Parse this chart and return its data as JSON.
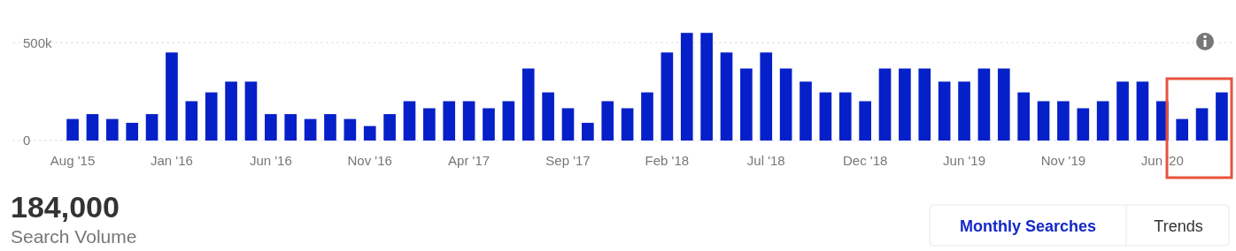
{
  "chart_data": {
    "type": "bar",
    "categories": [
      "Aug '15",
      null,
      null,
      null,
      null,
      "Jan '16",
      null,
      null,
      null,
      null,
      "Jun '16",
      null,
      null,
      null,
      null,
      "Nov '16",
      null,
      null,
      null,
      null,
      "Apr '17",
      null,
      null,
      null,
      null,
      "Sep '17",
      null,
      null,
      null,
      null,
      "Feb '18",
      null,
      null,
      null,
      null,
      "Jul '18",
      null,
      null,
      null,
      null,
      "Dec '18",
      null,
      null,
      null,
      null,
      "Jun '19",
      null,
      null,
      null,
      null,
      "Nov '19",
      null,
      null,
      null,
      null,
      "Jun '20",
      null,
      null,
      null
    ],
    "values": [
      110000,
      135000,
      110000,
      90500,
      135000,
      450000,
      201000,
      246000,
      301000,
      301000,
      135000,
      135000,
      110000,
      135000,
      110000,
      74000,
      135000,
      201000,
      165000,
      201000,
      201000,
      165000,
      201000,
      368000,
      246000,
      165000,
      90500,
      201000,
      165000,
      246000,
      450000,
      550000,
      550000,
      450000,
      368000,
      450000,
      368000,
      301000,
      246000,
      246000,
      201000,
      368000,
      368000,
      368000,
      301000,
      301000,
      368000,
      368000,
      246000,
      201000,
      201000,
      165000,
      201000,
      301000,
      301000,
      201000,
      110000,
      165000,
      246000
    ],
    "color": "#0520c8",
    "ylim": [
      0,
      560000
    ],
    "yticks": [
      0,
      {
        "value": 500000,
        "label": "500k"
      }
    ],
    "grid": "y",
    "annotations": [
      "184,000",
      "Search Volume",
      "Monthly Searches",
      "Trends"
    ]
  }
}
